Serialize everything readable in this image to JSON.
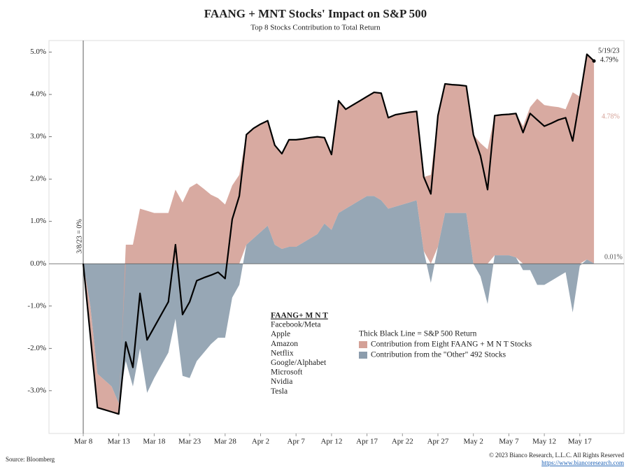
{
  "chart_data": {
    "type": "stacked_area_line",
    "title": "FAANG + MNT Stocks' Impact on S&P 500",
    "subtitle": "Top 8 Stocks Contribution to Total Return",
    "categories": [
      "Mar 8",
      null,
      null,
      null,
      null,
      "Mar 13",
      null,
      null,
      null,
      null,
      "Mar 18",
      null,
      null,
      null,
      null,
      "Mar 23",
      null,
      null,
      null,
      null,
      "Mar 28",
      null,
      null,
      null,
      null,
      "Apr 2",
      null,
      null,
      null,
      null,
      "Apr 7",
      null,
      null,
      null,
      null,
      "Apr 12",
      null,
      null,
      null,
      null,
      "Apr 17",
      null,
      null,
      null,
      null,
      "Apr 22",
      null,
      null,
      null,
      null,
      "Apr 27",
      null,
      null,
      null,
      null,
      "May 2",
      null,
      null,
      null,
      null,
      "May 7",
      null,
      null,
      null,
      null,
      "May 12",
      null,
      null,
      null,
      null,
      "May 17",
      null,
      null
    ],
    "series": [
      {
        "name": "Contribution from the \"Other\" 492 Stocks",
        "color": "#8c9dad",
        "kind": "area",
        "values": [
          0,
          -1.0,
          -2.6,
          -2.75,
          -2.9,
          -3.3,
          -2.3,
          -2.9,
          -2.0,
          -3.05,
          -2.7,
          -2.4,
          -2.1,
          -1.3,
          -2.65,
          -2.7,
          -2.3,
          -2.1,
          -1.9,
          -1.75,
          -1.75,
          -0.8,
          -0.5,
          0.45,
          0.6,
          0.75,
          0.9,
          0.45,
          0.35,
          0.4,
          0.4,
          0.5,
          0.6,
          0.7,
          0.95,
          0.8,
          1.2,
          1.3,
          1.4,
          1.5,
          1.6,
          1.6,
          1.5,
          1.3,
          1.35,
          1.4,
          1.45,
          1.5,
          0.3,
          -0.45,
          0.4,
          1.2,
          1.2,
          1.2,
          1.2,
          0.0,
          -0.3,
          -0.95,
          0.2,
          0.2,
          0.2,
          0.15,
          -0.15,
          -0.15,
          -0.5,
          -0.5,
          -0.4,
          -0.3,
          -0.2,
          -1.15,
          -0.05,
          0.1,
          0.01
        ]
      },
      {
        "name": "Contribution from Eight FAANG + M N T Stocks",
        "color": "#d4a197",
        "kind": "area",
        "values": [
          0,
          -0.7,
          -0.8,
          -0.7,
          -0.6,
          -0.25,
          0.45,
          0.45,
          1.3,
          1.25,
          1.2,
          1.2,
          1.2,
          1.75,
          1.45,
          1.8,
          1.9,
          1.77,
          1.63,
          1.55,
          1.4,
          1.85,
          2.1,
          2.6,
          2.6,
          2.55,
          2.48,
          2.35,
          2.25,
          2.53,
          2.53,
          2.45,
          2.38,
          2.3,
          2.03,
          1.78,
          2.65,
          2.35,
          2.35,
          2.35,
          2.35,
          2.45,
          2.53,
          2.15,
          2.17,
          2.15,
          2.13,
          2.1,
          1.75,
          2.1,
          3.1,
          3.05,
          3.03,
          3.02,
          3.0,
          3.05,
          2.85,
          2.7,
          3.3,
          3.32,
          3.33,
          3.4,
          3.25,
          3.7,
          3.9,
          3.75,
          3.72,
          3.7,
          3.65,
          4.05,
          3.95,
          4.85,
          4.78
        ]
      },
      {
        "name": "Thick Black Line = S&P 500 Return",
        "color": "#000000",
        "kind": "line",
        "values": [
          0,
          -1.7,
          -3.4,
          -3.45,
          -3.5,
          -3.55,
          -1.85,
          -2.45,
          -0.7,
          -1.8,
          -1.5,
          -1.2,
          -0.9,
          0.45,
          -1.2,
          -0.9,
          -0.4,
          -0.33,
          -0.27,
          -0.2,
          -0.35,
          1.05,
          1.6,
          3.05,
          3.2,
          3.3,
          3.38,
          2.8,
          2.6,
          2.93,
          2.93,
          2.95,
          2.98,
          3.0,
          2.98,
          2.58,
          3.85,
          3.65,
          3.75,
          3.85,
          3.95,
          4.05,
          4.03,
          3.45,
          3.52,
          3.55,
          3.58,
          3.6,
          2.05,
          1.65,
          3.5,
          4.25,
          4.23,
          4.22,
          4.2,
          3.05,
          2.55,
          1.75,
          3.5,
          3.52,
          3.53,
          3.55,
          3.1,
          3.55,
          3.4,
          3.25,
          3.32,
          3.4,
          3.45,
          2.9,
          3.9,
          4.95,
          4.79
        ]
      }
    ],
    "ylim": [
      -4,
      5.25
    ],
    "yticks": [
      {
        "value": -3,
        "label": "-3.0%"
      },
      {
        "value": -2,
        "label": "-2.0%"
      },
      {
        "value": -1,
        "label": "-1.0%"
      },
      {
        "value": 0,
        "label": "0.0%"
      },
      {
        "value": 1,
        "label": "1.0%"
      },
      {
        "value": 2,
        "label": "2.0%"
      },
      {
        "value": 3,
        "label": "3.0%"
      },
      {
        "value": 4,
        "label": "4.0%"
      },
      {
        "value": 5,
        "label": "5.0%"
      }
    ],
    "annotations": {
      "start": "3/8/23 = 0%",
      "end_date": "5/19/23",
      "end_total": "4.79%",
      "end_faang": "4.78%",
      "end_other": "0.01%"
    },
    "stock_list": {
      "title": "FAANG+ M N T",
      "items": [
        "Facebook/Meta",
        "Apple",
        "Amazon",
        "Netflix",
        "Google/Alphabet",
        "Microsoft",
        "Nvidia",
        "Tesla"
      ]
    },
    "source": "Source: Bloomberg",
    "copyright": "© 2023 Bianco Research, L.L.C. All Rights Reserved",
    "url": "https://www.biancoresearch.com"
  }
}
